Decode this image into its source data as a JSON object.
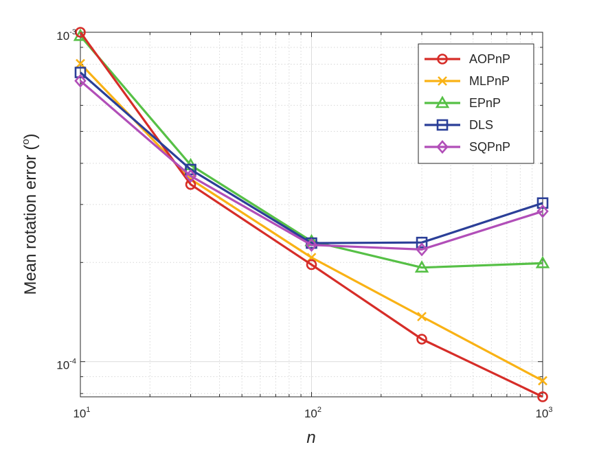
{
  "chart_data": {
    "type": "line",
    "xscale": "log",
    "yscale": "log",
    "x": [
      10,
      30,
      100,
      300,
      1000
    ],
    "xlim": [
      10,
      1000
    ],
    "ylim": [
      7.818e-05,
      0.001
    ],
    "xlabel": "n",
    "ylabel": "Mean rotation error (°)",
    "ylabel_main": "Mean rotation error (",
    "ylabel_sup": "o",
    "ylabel_close": ")",
    "grid": true,
    "legend_position": "top-right",
    "x_ticks": [
      {
        "value": 10,
        "base": "10",
        "exp": "1"
      },
      {
        "value": 100,
        "base": "10",
        "exp": "2"
      },
      {
        "value": 1000,
        "base": "10",
        "exp": "3"
      }
    ],
    "y_ticks": [
      {
        "value": 0.001,
        "base": "10",
        "exp": "-3"
      },
      {
        "value": 0.0001,
        "base": "10",
        "exp": "-4"
      }
    ],
    "series": [
      {
        "name": "AOPnP",
        "color": "#D62D28",
        "marker": "circle",
        "values": [
          0.001,
          0.000345,
          0.000197,
          0.000117,
          7.82e-05
        ]
      },
      {
        "name": "MLPnP",
        "color": "#F9B215",
        "marker": "x",
        "values": [
          0.000803,
          0.000358,
          0.000207,
          0.000137,
          8.75e-05
        ]
      },
      {
        "name": "EPnP",
        "color": "#56C046",
        "marker": "triangle",
        "values": [
          0.000975,
          0.000395,
          0.000232,
          0.000193,
          0.000199
        ]
      },
      {
        "name": "DLS",
        "color": "#2B3F98",
        "marker": "square",
        "values": [
          0.000755,
          0.000383,
          0.000229,
          0.00023,
          0.000303
        ]
      },
      {
        "name": "SQPnP",
        "color": "#B14EB8",
        "marker": "diamond",
        "values": [
          0.000712,
          0.000366,
          0.000226,
          0.000219,
          0.000286
        ]
      }
    ]
  }
}
